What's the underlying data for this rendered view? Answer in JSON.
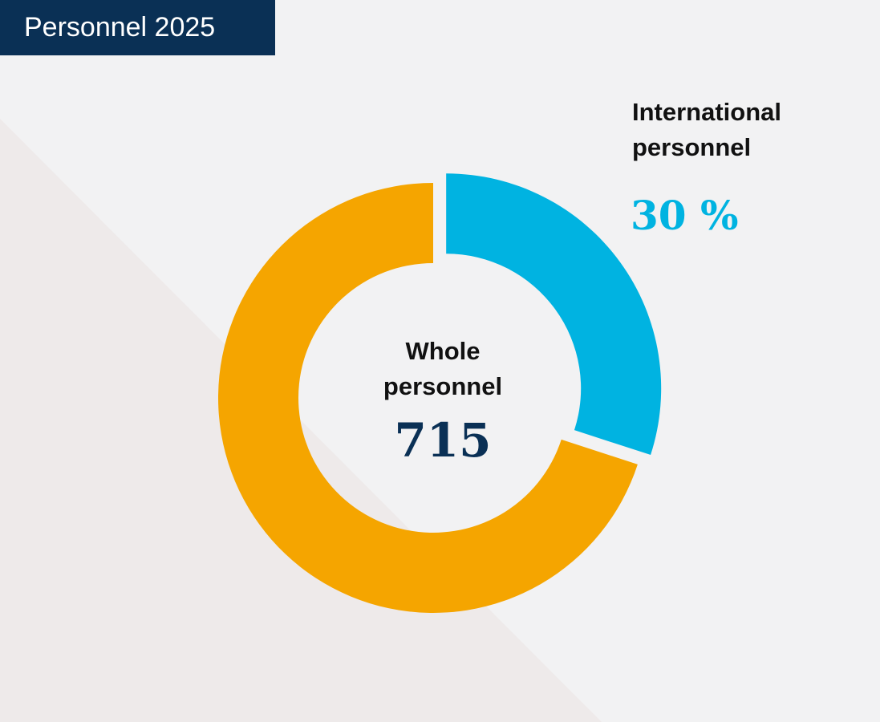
{
  "title": "Personnel 2025",
  "colors": {
    "title_bg": "#0a3055",
    "title_text": "#ffffff",
    "background": "#f2f2f3",
    "background_shade": "#eeeaea",
    "international": "#00b3e1",
    "domestic": "#f5a500",
    "total_value": "#0a3055"
  },
  "chart_data": {
    "type": "pie",
    "donut": true,
    "slices": [
      {
        "label": "International personnel",
        "value": 30,
        "color": "#00b3e1",
        "exploded": true
      },
      {
        "label": "",
        "value": 70,
        "color": "#f5a500",
        "exploded": false
      }
    ],
    "center_label": "Whole personnel",
    "center_value": "715",
    "annotation": {
      "label": "International personnel",
      "value_text": "30 %"
    }
  }
}
